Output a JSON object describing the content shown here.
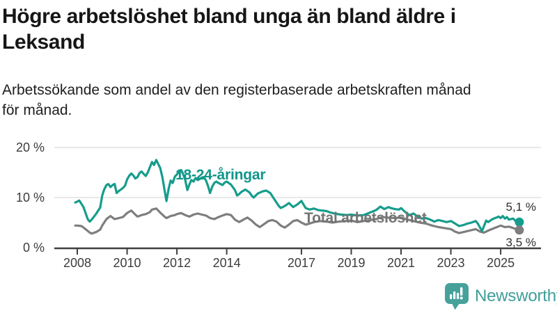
{
  "header": {
    "title_lines": [
      "Högre arbetslöshet bland unga än bland äldre i",
      "Leksand"
    ],
    "subtitle_lines": [
      "Arbetssökande som andel av den registerbaserade arbetskraften månad",
      "för månad."
    ]
  },
  "footer": {
    "brand": "Newsworthy"
  },
  "chart_data": {
    "type": "line",
    "title": "Högre arbetslöshet bland unga än bland äldre i Leksand",
    "subtitle": "Arbetssökande som andel av den registerbaserade arbetskraften månad för månad.",
    "xlabel": "",
    "ylabel": "",
    "unit": "%",
    "grid": "horizontal-only",
    "legend_position": "inline-annotations",
    "x_range": [
      2007.9,
      2025.83
    ],
    "ylim": [
      0,
      20
    ],
    "x_ticks": [
      2008,
      2010,
      2012,
      2014,
      2017,
      2019,
      2021,
      2023,
      2025
    ],
    "y_ticks": [
      {
        "value": 0,
        "label": "0 %"
      },
      {
        "value": 10,
        "label": "10 %"
      },
      {
        "value": 20,
        "label": "20 %"
      }
    ],
    "colors": {
      "grid": "#dadada",
      "axis": "#3f3f3f",
      "accent_teal": "#169c8c",
      "neutral_gray": "#7e7e7e"
    },
    "series": [
      {
        "id": "youth",
        "name": "18-24-åringar",
        "color": "#169c8c",
        "label_color": "#11968a",
        "end_label": "5,1 %",
        "end_value": 5.1,
        "points": [
          [
            2007.92,
            9.0
          ],
          [
            2008.0,
            9.2
          ],
          [
            2008.08,
            9.4
          ],
          [
            2008.25,
            8.1
          ],
          [
            2008.42,
            5.7
          ],
          [
            2008.5,
            5.2
          ],
          [
            2008.58,
            5.6
          ],
          [
            2008.75,
            6.7
          ],
          [
            2008.92,
            8.0
          ],
          [
            2009.0,
            10.4
          ],
          [
            2009.08,
            11.6
          ],
          [
            2009.17,
            12.5
          ],
          [
            2009.25,
            12.7
          ],
          [
            2009.33,
            12.1
          ],
          [
            2009.42,
            12.5
          ],
          [
            2009.5,
            12.7
          ],
          [
            2009.58,
            10.9
          ],
          [
            2009.67,
            11.3
          ],
          [
            2009.75,
            11.6
          ],
          [
            2009.83,
            11.9
          ],
          [
            2009.92,
            12.4
          ],
          [
            2010.0,
            13.6
          ],
          [
            2010.08,
            14.3
          ],
          [
            2010.17,
            14.8
          ],
          [
            2010.25,
            14.4
          ],
          [
            2010.33,
            13.8
          ],
          [
            2010.42,
            14.1
          ],
          [
            2010.5,
            14.9
          ],
          [
            2010.58,
            15.2
          ],
          [
            2010.67,
            14.7
          ],
          [
            2010.75,
            14.3
          ],
          [
            2010.83,
            15.0
          ],
          [
            2010.92,
            16.1
          ],
          [
            2011.0,
            17.1
          ],
          [
            2011.08,
            16.5
          ],
          [
            2011.17,
            17.5
          ],
          [
            2011.25,
            16.7
          ],
          [
            2011.33,
            15.9
          ],
          [
            2011.42,
            14.0
          ],
          [
            2011.5,
            11.6
          ],
          [
            2011.58,
            9.3
          ],
          [
            2011.67,
            11.8
          ],
          [
            2011.75,
            13.4
          ],
          [
            2011.83,
            12.9
          ],
          [
            2011.92,
            14.2
          ],
          [
            2012.0,
            14.6
          ],
          [
            2012.08,
            15.2
          ],
          [
            2012.17,
            15.5
          ],
          [
            2012.25,
            14.7
          ],
          [
            2012.33,
            13.6
          ],
          [
            2012.42,
            11.5
          ],
          [
            2012.5,
            12.6
          ],
          [
            2012.58,
            13.5
          ],
          [
            2012.67,
            13.2
          ],
          [
            2012.75,
            13.9
          ],
          [
            2012.83,
            13.5
          ],
          [
            2012.92,
            13.7
          ],
          [
            2013.0,
            14.0
          ],
          [
            2013.08,
            14.1
          ],
          [
            2013.17,
            13.4
          ],
          [
            2013.25,
            12.3
          ],
          [
            2013.33,
            10.9
          ],
          [
            2013.42,
            12.2
          ],
          [
            2013.5,
            12.9
          ],
          [
            2013.58,
            13.2
          ],
          [
            2013.67,
            12.9
          ],
          [
            2013.83,
            12.5
          ],
          [
            2013.92,
            13.0
          ],
          [
            2014.0,
            13.2
          ],
          [
            2014.08,
            12.9
          ],
          [
            2014.17,
            12.6
          ],
          [
            2014.33,
            11.5
          ],
          [
            2014.42,
            10.4
          ],
          [
            2014.5,
            10.7
          ],
          [
            2014.58,
            11.1
          ],
          [
            2014.75,
            11.6
          ],
          [
            2014.92,
            11.0
          ],
          [
            2015.0,
            10.4
          ],
          [
            2015.08,
            10.0
          ],
          [
            2015.25,
            10.8
          ],
          [
            2015.42,
            11.2
          ],
          [
            2015.58,
            11.4
          ],
          [
            2015.75,
            10.9
          ],
          [
            2015.92,
            9.6
          ],
          [
            2016.08,
            8.4
          ],
          [
            2016.17,
            7.9
          ],
          [
            2016.33,
            8.3
          ],
          [
            2016.5,
            8.9
          ],
          [
            2016.67,
            8.1
          ],
          [
            2016.83,
            8.6
          ],
          [
            2017.0,
            9.3
          ],
          [
            2017.17,
            7.9
          ],
          [
            2017.33,
            7.6
          ],
          [
            2017.5,
            7.8
          ],
          [
            2017.67,
            7.5
          ],
          [
            2017.83,
            7.4
          ],
          [
            2018.0,
            7.3
          ],
          [
            2018.17,
            7.0
          ],
          [
            2018.33,
            6.8
          ],
          [
            2018.58,
            6.6
          ],
          [
            2018.83,
            6.5
          ],
          [
            2019.0,
            6.6
          ],
          [
            2019.25,
            6.4
          ],
          [
            2019.5,
            6.5
          ],
          [
            2019.75,
            7.0
          ],
          [
            2020.0,
            7.5
          ],
          [
            2020.17,
            8.2
          ],
          [
            2020.33,
            7.7
          ],
          [
            2020.5,
            8.1
          ],
          [
            2020.58,
            7.9
          ],
          [
            2020.75,
            7.7
          ],
          [
            2020.92,
            7.6
          ],
          [
            2021.0,
            7.9
          ],
          [
            2021.17,
            7.1
          ],
          [
            2021.33,
            6.5
          ],
          [
            2021.5,
            6.8
          ],
          [
            2021.67,
            6.2
          ],
          [
            2021.83,
            5.8
          ],
          [
            2022.0,
            5.9
          ],
          [
            2022.17,
            5.6
          ],
          [
            2022.33,
            5.2
          ],
          [
            2022.5,
            5.5
          ],
          [
            2022.67,
            5.3
          ],
          [
            2022.83,
            5.1
          ],
          [
            2023.0,
            5.3
          ],
          [
            2023.17,
            4.8
          ],
          [
            2023.33,
            4.3
          ],
          [
            2023.5,
            4.5
          ],
          [
            2023.67,
            4.8
          ],
          [
            2023.83,
            5.0
          ],
          [
            2024.0,
            5.3
          ],
          [
            2024.08,
            4.8
          ],
          [
            2024.25,
            3.3
          ],
          [
            2024.42,
            5.4
          ],
          [
            2024.5,
            5.1
          ],
          [
            2024.67,
            5.7
          ],
          [
            2024.83,
            6.0
          ],
          [
            2024.92,
            6.2
          ],
          [
            2025.0,
            5.9
          ],
          [
            2025.08,
            6.3
          ],
          [
            2025.17,
            5.8
          ],
          [
            2025.25,
            6.1
          ],
          [
            2025.33,
            5.6
          ],
          [
            2025.5,
            5.8
          ],
          [
            2025.58,
            5.4
          ],
          [
            2025.75,
            5.1
          ]
        ]
      },
      {
        "id": "total",
        "name": "Total arbetslöshet",
        "color": "#7e7e7e",
        "label_color": "#747474",
        "end_label": "3,5 %",
        "end_value": 3.5,
        "points": [
          [
            2007.92,
            4.4
          ],
          [
            2008.0,
            4.4
          ],
          [
            2008.17,
            4.3
          ],
          [
            2008.33,
            3.7
          ],
          [
            2008.5,
            3.0
          ],
          [
            2008.58,
            2.8
          ],
          [
            2008.75,
            3.1
          ],
          [
            2008.92,
            3.6
          ],
          [
            2009.0,
            4.4
          ],
          [
            2009.17,
            5.7
          ],
          [
            2009.33,
            6.3
          ],
          [
            2009.5,
            5.7
          ],
          [
            2009.67,
            5.9
          ],
          [
            2009.83,
            6.1
          ],
          [
            2010.0,
            6.9
          ],
          [
            2010.17,
            7.4
          ],
          [
            2010.33,
            6.6
          ],
          [
            2010.42,
            6.2
          ],
          [
            2010.58,
            6.5
          ],
          [
            2010.75,
            6.7
          ],
          [
            2010.92,
            7.1
          ],
          [
            2011.0,
            7.6
          ],
          [
            2011.17,
            7.8
          ],
          [
            2011.33,
            7.0
          ],
          [
            2011.5,
            6.2
          ],
          [
            2011.58,
            5.9
          ],
          [
            2011.75,
            6.3
          ],
          [
            2011.92,
            6.5
          ],
          [
            2012.0,
            6.7
          ],
          [
            2012.17,
            6.9
          ],
          [
            2012.33,
            6.5
          ],
          [
            2012.5,
            6.2
          ],
          [
            2012.67,
            6.6
          ],
          [
            2012.83,
            6.8
          ],
          [
            2013.0,
            6.6
          ],
          [
            2013.17,
            6.4
          ],
          [
            2013.33,
            5.9
          ],
          [
            2013.5,
            5.7
          ],
          [
            2013.67,
            6.1
          ],
          [
            2013.83,
            6.4
          ],
          [
            2014.0,
            6.7
          ],
          [
            2014.17,
            6.5
          ],
          [
            2014.33,
            5.6
          ],
          [
            2014.5,
            5.1
          ],
          [
            2014.67,
            5.6
          ],
          [
            2014.83,
            6.0
          ],
          [
            2015.0,
            5.4
          ],
          [
            2015.17,
            4.6
          ],
          [
            2015.33,
            4.1
          ],
          [
            2015.5,
            4.7
          ],
          [
            2015.67,
            5.3
          ],
          [
            2015.83,
            5.5
          ],
          [
            2016.0,
            5.2
          ],
          [
            2016.17,
            4.4
          ],
          [
            2016.33,
            4.0
          ],
          [
            2016.5,
            4.6
          ],
          [
            2016.67,
            5.3
          ],
          [
            2016.83,
            5.5
          ],
          [
            2017.0,
            5.0
          ],
          [
            2017.17,
            4.6
          ],
          [
            2017.33,
            4.8
          ],
          [
            2017.5,
            5.1
          ],
          [
            2017.75,
            5.3
          ],
          [
            2018.0,
            5.2
          ],
          [
            2018.25,
            5.0
          ],
          [
            2018.5,
            5.2
          ],
          [
            2018.75,
            5.3
          ],
          [
            2019.0,
            5.4
          ],
          [
            2019.25,
            5.1
          ],
          [
            2019.5,
            5.3
          ],
          [
            2019.75,
            5.5
          ],
          [
            2020.0,
            5.7
          ],
          [
            2020.25,
            6.1
          ],
          [
            2020.5,
            6.0
          ],
          [
            2020.75,
            5.9
          ],
          [
            2021.0,
            6.0
          ],
          [
            2021.25,
            5.6
          ],
          [
            2021.5,
            5.3
          ],
          [
            2021.75,
            5.0
          ],
          [
            2022.0,
            4.8
          ],
          [
            2022.25,
            4.4
          ],
          [
            2022.5,
            4.1
          ],
          [
            2022.75,
            3.9
          ],
          [
            2023.0,
            3.7
          ],
          [
            2023.17,
            3.2
          ],
          [
            2023.33,
            2.9
          ],
          [
            2023.5,
            3.1
          ],
          [
            2023.75,
            3.4
          ],
          [
            2024.0,
            3.7
          ],
          [
            2024.17,
            3.2
          ],
          [
            2024.33,
            3.0
          ],
          [
            2024.5,
            3.4
          ],
          [
            2024.75,
            3.9
          ],
          [
            2025.0,
            4.4
          ],
          [
            2025.17,
            4.1
          ],
          [
            2025.33,
            4.2
          ],
          [
            2025.5,
            3.9
          ],
          [
            2025.67,
            3.6
          ],
          [
            2025.75,
            3.5
          ]
        ]
      }
    ]
  }
}
